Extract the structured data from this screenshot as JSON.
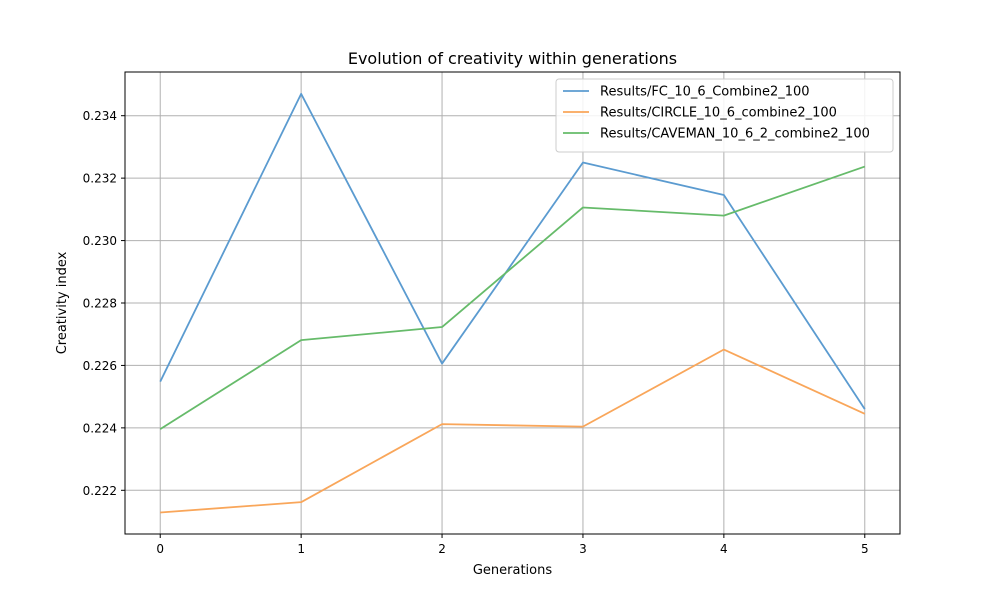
{
  "chart_data": {
    "type": "line",
    "title": "Evolution of creativity within generations",
    "xlabel": "Generations",
    "ylabel": "Creativity index",
    "x": [
      0,
      1,
      2,
      3,
      4,
      5
    ],
    "x_ticks": [
      "0",
      "1",
      "2",
      "3",
      "4",
      "5"
    ],
    "y_ticks": [
      "0.222",
      "0.224",
      "0.226",
      "0.228",
      "0.230",
      "0.232",
      "0.234"
    ],
    "xlim": [
      -0.25,
      5.25
    ],
    "ylim": [
      0.2206,
      0.2354
    ],
    "grid": true,
    "legend_position": "top-right",
    "series": [
      {
        "name": "Results/FC_10_6_Combine2_100",
        "color": "#5b9bd0",
        "values": [
          0.22548,
          0.2347,
          0.22606,
          0.2325,
          0.23146,
          0.2246
        ]
      },
      {
        "name": "Results/CIRCLE_10_6_combine2_100",
        "color": "#f9a65a",
        "values": [
          0.22129,
          0.22162,
          0.22412,
          0.22404,
          0.22651,
          0.22445
        ]
      },
      {
        "name": "Results/CAVEMAN_10_6_2_combine2_100",
        "color": "#66bb6a",
        "values": [
          0.22396,
          0.22681,
          0.22723,
          0.23106,
          0.2308,
          0.23237
        ]
      }
    ]
  }
}
